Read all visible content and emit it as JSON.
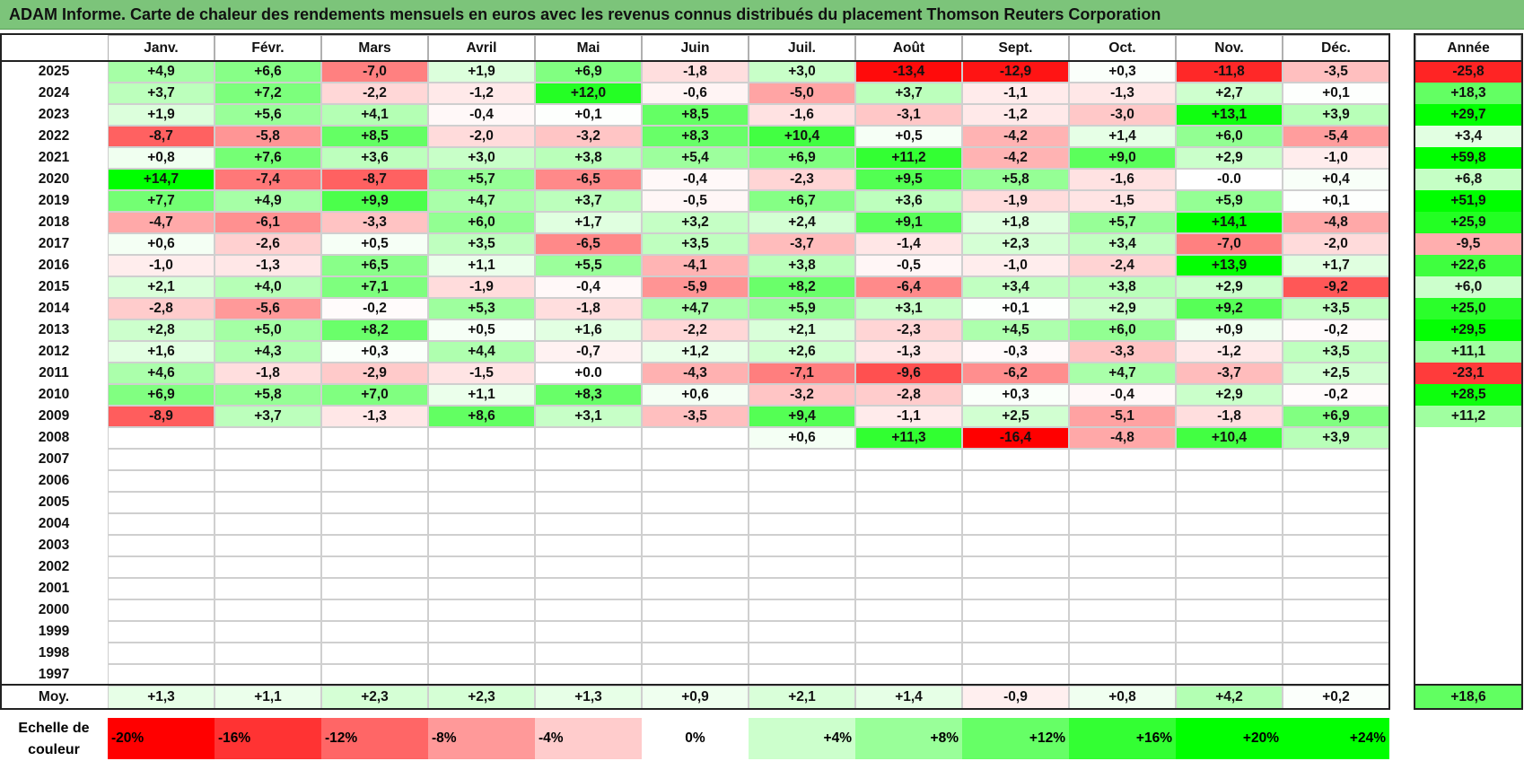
{
  "title": "ADAM Informe. Carte de chaleur des rendements mensuels en euros avec les revenus connus distribués du placement Thomson Reuters Corporation",
  "chart_data": {
    "type": "heatmap",
    "months": [
      "Janv.",
      "Févr.",
      "Mars",
      "Avril",
      "Mai",
      "Juin",
      "Juil.",
      "Août",
      "Sept.",
      "Oct.",
      "Nov.",
      "Déc."
    ],
    "year_header": "Année",
    "rows": [
      {
        "year": "2025",
        "values": [
          4.9,
          6.6,
          -7.0,
          1.9,
          6.9,
          -1.8,
          3.0,
          -13.4,
          -12.9,
          0.3,
          -11.8,
          -3.5
        ],
        "annual": -25.8
      },
      {
        "year": "2024",
        "values": [
          3.7,
          7.2,
          -2.2,
          -1.2,
          12.0,
          -0.6,
          -5.0,
          3.7,
          -1.1,
          -1.3,
          2.7,
          0.1
        ],
        "annual": 18.3
      },
      {
        "year": "2023",
        "values": [
          1.9,
          5.6,
          4.1,
          -0.4,
          0.1,
          8.5,
          -1.6,
          -3.1,
          -1.2,
          -3.0,
          13.1,
          3.9
        ],
        "annual": 29.7
      },
      {
        "year": "2022",
        "values": [
          -8.7,
          -5.8,
          8.5,
          -2.0,
          -3.2,
          8.3,
          10.4,
          0.5,
          -4.2,
          1.4,
          6.0,
          -5.4
        ],
        "annual": 3.4
      },
      {
        "year": "2021",
        "values": [
          0.8,
          7.6,
          3.6,
          3.0,
          3.8,
          5.4,
          6.9,
          11.2,
          -4.2,
          9.0,
          2.9,
          -1.0
        ],
        "annual": 59.8
      },
      {
        "year": "2020",
        "values": [
          14.7,
          -7.4,
          -8.7,
          5.7,
          -6.5,
          -0.4,
          -2.3,
          9.5,
          5.8,
          -1.6,
          "-0.0",
          0.4
        ],
        "annual": 6.8
      },
      {
        "year": "2019",
        "values": [
          7.7,
          4.9,
          9.9,
          4.7,
          3.7,
          -0.5,
          6.7,
          3.6,
          -1.9,
          -1.5,
          5.9,
          0.1
        ],
        "annual": 51.9
      },
      {
        "year": "2018",
        "values": [
          -4.7,
          -6.1,
          -3.3,
          6.0,
          1.7,
          3.2,
          2.4,
          9.1,
          1.8,
          5.7,
          14.1,
          -4.8
        ],
        "annual": 25.9
      },
      {
        "year": "2017",
        "values": [
          0.6,
          -2.6,
          0.5,
          3.5,
          -6.5,
          3.5,
          -3.7,
          -1.4,
          2.3,
          3.4,
          -7.0,
          -2.0
        ],
        "annual": -9.5
      },
      {
        "year": "2016",
        "values": [
          -1.0,
          -1.3,
          6.5,
          1.1,
          5.5,
          -4.1,
          3.8,
          -0.5,
          -1.0,
          -2.4,
          13.9,
          1.7
        ],
        "annual": 22.6
      },
      {
        "year": "2015",
        "values": [
          2.1,
          4.0,
          7.1,
          -1.9,
          -0.4,
          -5.9,
          8.2,
          -6.4,
          3.4,
          3.8,
          2.9,
          -9.2
        ],
        "annual": 6.0
      },
      {
        "year": "2014",
        "values": [
          -2.8,
          -5.6,
          -0.2,
          5.3,
          -1.8,
          4.7,
          5.9,
          3.1,
          0.1,
          2.9,
          9.2,
          3.5
        ],
        "annual": 25.0
      },
      {
        "year": "2013",
        "values": [
          2.8,
          5.0,
          8.2,
          0.5,
          1.6,
          -2.2,
          2.1,
          -2.3,
          4.5,
          6.0,
          0.9,
          -0.2
        ],
        "annual": 29.5
      },
      {
        "year": "2012",
        "values": [
          1.6,
          4.3,
          0.3,
          4.4,
          -0.7,
          1.2,
          2.6,
          -1.3,
          -0.3,
          -3.3,
          -1.2,
          3.5
        ],
        "annual": 11.1
      },
      {
        "year": "2011",
        "values": [
          4.6,
          -1.8,
          -2.9,
          -1.5,
          "+0.0",
          -4.3,
          -7.1,
          -9.6,
          -6.2,
          4.7,
          -3.7,
          2.5
        ],
        "annual": -23.1
      },
      {
        "year": "2010",
        "values": [
          6.9,
          5.8,
          7.0,
          1.1,
          8.3,
          0.6,
          -3.2,
          -2.8,
          0.3,
          -0.4,
          2.9,
          -0.2
        ],
        "annual": 28.5
      },
      {
        "year": "2009",
        "values": [
          -8.9,
          3.7,
          -1.3,
          8.6,
          3.1,
          -3.5,
          9.4,
          -1.1,
          2.5,
          -5.1,
          -1.8,
          6.9
        ],
        "annual": 11.2
      },
      {
        "year": "2008",
        "values": [
          null,
          null,
          null,
          null,
          null,
          null,
          0.6,
          11.3,
          -16.4,
          -4.8,
          10.4,
          3.9
        ],
        "annual": null
      },
      {
        "year": "2007",
        "values": [
          null,
          null,
          null,
          null,
          null,
          null,
          null,
          null,
          null,
          null,
          null,
          null
        ],
        "annual": null
      },
      {
        "year": "2006",
        "values": [
          null,
          null,
          null,
          null,
          null,
          null,
          null,
          null,
          null,
          null,
          null,
          null
        ],
        "annual": null
      },
      {
        "year": "2005",
        "values": [
          null,
          null,
          null,
          null,
          null,
          null,
          null,
          null,
          null,
          null,
          null,
          null
        ],
        "annual": null
      },
      {
        "year": "2004",
        "values": [
          null,
          null,
          null,
          null,
          null,
          null,
          null,
          null,
          null,
          null,
          null,
          null
        ],
        "annual": null
      },
      {
        "year": "2003",
        "values": [
          null,
          null,
          null,
          null,
          null,
          null,
          null,
          null,
          null,
          null,
          null,
          null
        ],
        "annual": null
      },
      {
        "year": "2002",
        "values": [
          null,
          null,
          null,
          null,
          null,
          null,
          null,
          null,
          null,
          null,
          null,
          null
        ],
        "annual": null
      },
      {
        "year": "2001",
        "values": [
          null,
          null,
          null,
          null,
          null,
          null,
          null,
          null,
          null,
          null,
          null,
          null
        ],
        "annual": null
      },
      {
        "year": "2000",
        "values": [
          null,
          null,
          null,
          null,
          null,
          null,
          null,
          null,
          null,
          null,
          null,
          null
        ],
        "annual": null
      },
      {
        "year": "1999",
        "values": [
          null,
          null,
          null,
          null,
          null,
          null,
          null,
          null,
          null,
          null,
          null,
          null
        ],
        "annual": null
      },
      {
        "year": "1998",
        "values": [
          null,
          null,
          null,
          null,
          null,
          null,
          null,
          null,
          null,
          null,
          null,
          null
        ],
        "annual": null
      },
      {
        "year": "1997",
        "values": [
          null,
          null,
          null,
          null,
          null,
          null,
          null,
          null,
          null,
          null,
          null,
          null
        ],
        "annual": null
      }
    ],
    "average": {
      "label": "Moy.",
      "values": [
        1.3,
        1.1,
        2.3,
        2.3,
        1.3,
        0.9,
        2.1,
        1.4,
        -0.9,
        0.8,
        4.2,
        0.2
      ],
      "annual": 18.6
    },
    "color_scale": {
      "label": "Echelle de couleur",
      "stops": [
        "-20%",
        "-16%",
        "-12%",
        "-8%",
        "-4%",
        "0%",
        "+4%",
        "+8%",
        "+12%",
        "+16%",
        "+20%",
        "+24%"
      ],
      "negative_color": "#ff0000",
      "positive_color": "#00ff00",
      "neutral_color": "#ffffff"
    }
  }
}
